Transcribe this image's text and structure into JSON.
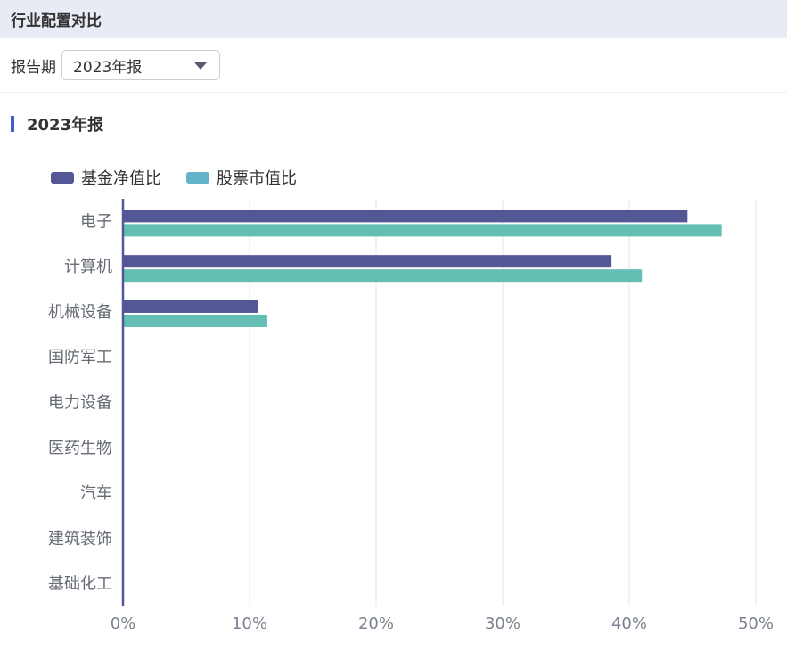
{
  "header": {
    "title": "行业配置对比"
  },
  "filter": {
    "label": "报告期",
    "selected": "2023年报"
  },
  "section": {
    "title": "2023年报"
  },
  "colors": {
    "accent": "#3f5bd5",
    "header_bg": "#e8eaf4",
    "series_fund": "#535796",
    "series_stock": "#63bfb3",
    "legend_stock": "#63b4c9",
    "axis": "#535796",
    "grid": "#eceef2"
  },
  "chart_data": {
    "type": "bar",
    "orientation": "horizontal",
    "categories": [
      "电子",
      "计算机",
      "机械设备",
      "国防军工",
      "电力设备",
      "医药生物",
      "汽车",
      "建筑装饰",
      "基础化工"
    ],
    "series": [
      {
        "name": "基金净值比",
        "values": [
          44.6,
          38.6,
          10.7,
          0,
          0,
          0,
          0,
          0,
          0
        ]
      },
      {
        "name": "股票市值比",
        "values": [
          47.3,
          41.0,
          11.4,
          0,
          0,
          0,
          0,
          0,
          0
        ]
      }
    ],
    "xlim": [
      0,
      50
    ],
    "xticks": [
      "0%",
      "10%",
      "20%",
      "30%",
      "40%",
      "50%"
    ],
    "grid": true,
    "legend_position": "top-left"
  }
}
